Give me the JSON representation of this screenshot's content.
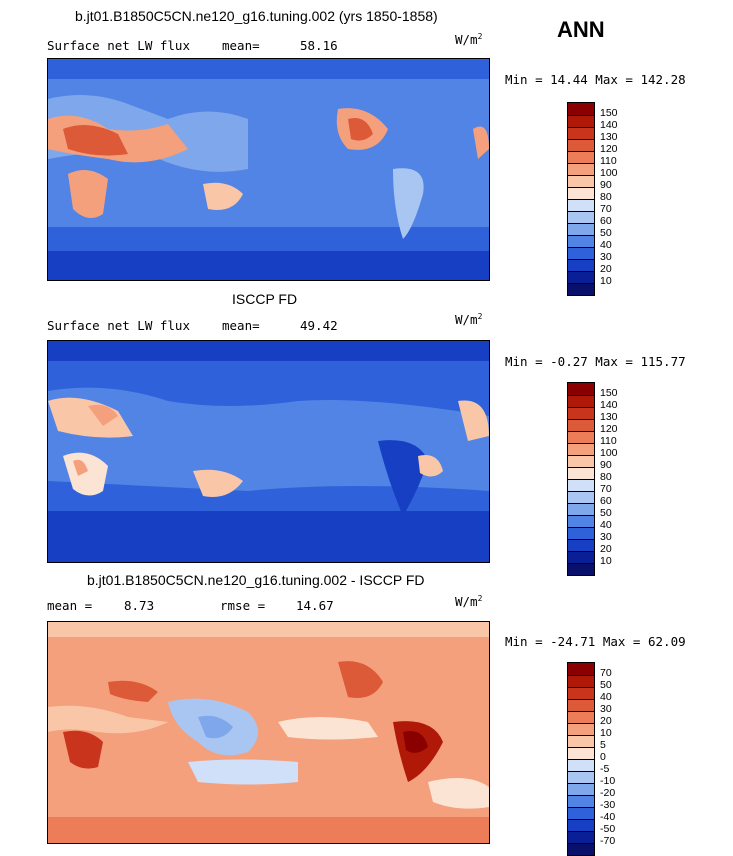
{
  "season": "ANN",
  "panels": [
    {
      "title": "b.jt01.B1850C5CN.ne120_g16.tuning.002 (yrs 1850-1858)",
      "left_label": "Surface net LW flux",
      "stat_label": "mean=",
      "stat_value": "58.16",
      "stat2_label": "",
      "stat2_value": "",
      "units_base": "W/m",
      "units_exp": "2",
      "minmax": "Min =  14.44 Max = 142.28",
      "levels": [
        "150",
        "140",
        "130",
        "120",
        "110",
        "100",
        "90",
        "80",
        "70",
        "60",
        "50",
        "40",
        "30",
        "20",
        "10"
      ],
      "colors": [
        "#8a0000",
        "#b01808",
        "#c8341c",
        "#dc5a38",
        "#ec7d58",
        "#f4a07c",
        "#f9c6a8",
        "#fbe4d4",
        "#cfe0f8",
        "#a9c6f2",
        "#7fa7ec",
        "#5184e4",
        "#2f62da",
        "#173fc4",
        "#0a1e96",
        "#08106c"
      ]
    },
    {
      "title": "ISCCP FD",
      "left_label": "Surface net LW flux",
      "stat_label": "mean=",
      "stat_value": "49.42",
      "stat2_label": "",
      "stat2_value": "",
      "units_base": "W/m",
      "units_exp": "2",
      "minmax": "Min =  -0.27 Max = 115.77",
      "levels": [
        "150",
        "140",
        "130",
        "120",
        "110",
        "100",
        "90",
        "80",
        "70",
        "60",
        "50",
        "40",
        "30",
        "20",
        "10"
      ],
      "colors": [
        "#8a0000",
        "#b01808",
        "#c8341c",
        "#dc5a38",
        "#ec7d58",
        "#f4a07c",
        "#f9c6a8",
        "#fbe4d4",
        "#cfe0f8",
        "#a9c6f2",
        "#7fa7ec",
        "#5184e4",
        "#2f62da",
        "#173fc4",
        "#0a1e96",
        "#08106c"
      ]
    },
    {
      "title": "b.jt01.B1850C5CN.ne120_g16.tuning.002 - ISCCP FD",
      "left_label": "mean =",
      "stat_label": "",
      "stat_value": "8.73",
      "stat2_label": "rmse =",
      "stat2_value": "14.67",
      "units_base": "W/m",
      "units_exp": "2",
      "minmax": "Min = -24.71 Max =  62.09",
      "levels": [
        "70",
        "50",
        "40",
        "30",
        "20",
        "10",
        "5",
        "0",
        "-5",
        "-10",
        "-20",
        "-30",
        "-40",
        "-50",
        "-70"
      ],
      "colors": [
        "#8a0000",
        "#b01808",
        "#c8341c",
        "#dc5a38",
        "#ec7d58",
        "#f4a07c",
        "#f9c6a8",
        "#fbe4d4",
        "#cfe0f8",
        "#a9c6f2",
        "#7fa7ec",
        "#5184e4",
        "#2f62da",
        "#173fc4",
        "#0a1e96",
        "#08106c"
      ]
    }
  ]
}
